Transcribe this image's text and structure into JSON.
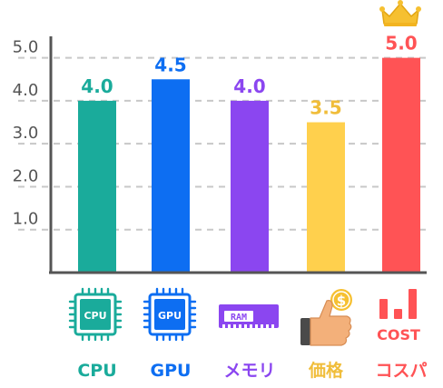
{
  "chart_data": {
    "type": "bar",
    "categories": [
      "CPU",
      "GPU",
      "メモリ",
      "価格",
      "コスパ"
    ],
    "values": [
      4.0,
      4.5,
      4.0,
      3.5,
      5.0
    ],
    "data_labels": [
      "4.0",
      "4.5",
      "4.0",
      "3.5",
      "5.0"
    ],
    "y_ticks": [
      "1.0",
      "2.0",
      "3.0",
      "4.0",
      "5.0"
    ],
    "ylim": [
      0,
      5.5
    ],
    "grid": true,
    "colors": [
      "#1aab9b",
      "#0d6ef2",
      "#8b46f0",
      "#ffd04d",
      "#ff5355"
    ],
    "label_colors": [
      "#1aab9b",
      "#0d6ef2",
      "#8b46f0",
      "#f0bd3a",
      "#ff5355"
    ],
    "icons": [
      "cpu-chip-icon",
      "gpu-chip-icon",
      "ram-module-icon",
      "thumbs-up-coin-icon",
      "cost-performance-icon"
    ],
    "icon_texts": {
      "cpu": "CPU",
      "gpu": "GPU",
      "ram": "RAM",
      "cost": "COST",
      "coin": "$"
    },
    "highlight": "crown-icon"
  }
}
